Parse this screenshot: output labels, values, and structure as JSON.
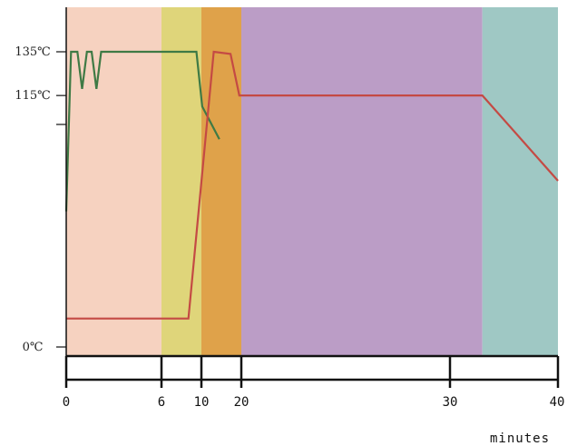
{
  "chart_data": {
    "type": "line",
    "xlabel": "minutes",
    "ylabel": "",
    "x_ticks": [
      {
        "label": "0",
        "at": 0
      },
      {
        "label": "6",
        "at": 6
      },
      {
        "label": "10",
        "at": 10
      },
      {
        "label": "20",
        "at": 20
      },
      {
        "label": "30",
        "at": 30
      },
      {
        "label": "40",
        "at": 40
      }
    ],
    "y_ticks": [
      {
        "label": "135℃",
        "value": 135
      },
      {
        "label": "115℃",
        "value": 115
      },
      {
        "label": "0℃",
        "value": 0
      }
    ],
    "ylim": [
      0,
      135
    ],
    "phases": [
      {
        "from": 0,
        "to": 6,
        "color": "#f6d2c0"
      },
      {
        "from": 6,
        "to": 10,
        "color": "#dfd57a"
      },
      {
        "from": 10,
        "to": 20,
        "color": "#dfa24a"
      },
      {
        "from": 20,
        "to": 33,
        "color": "#bb9dc6"
      },
      {
        "from": 33,
        "to": 40,
        "color": "#9fc8c4"
      }
    ],
    "series": [
      {
        "color": "#3f7a45",
        "points": [
          [
            0,
            62
          ],
          [
            0.3,
            135
          ],
          [
            0.7,
            135
          ],
          [
            1.0,
            118
          ],
          [
            1.3,
            135
          ],
          [
            1.6,
            135
          ],
          [
            1.9,
            118
          ],
          [
            2.2,
            135
          ],
          [
            9.5,
            135
          ],
          [
            10.2,
            110
          ],
          [
            14.5,
            95
          ]
        ]
      },
      {
        "color": "#c44a44",
        "points": [
          [
            0,
            13
          ],
          [
            8.7,
            13
          ],
          [
            13.1,
            135
          ],
          [
            17.3,
            134
          ],
          [
            19.5,
            115
          ],
          [
            33,
            115
          ],
          [
            40,
            76
          ]
        ]
      }
    ]
  }
}
